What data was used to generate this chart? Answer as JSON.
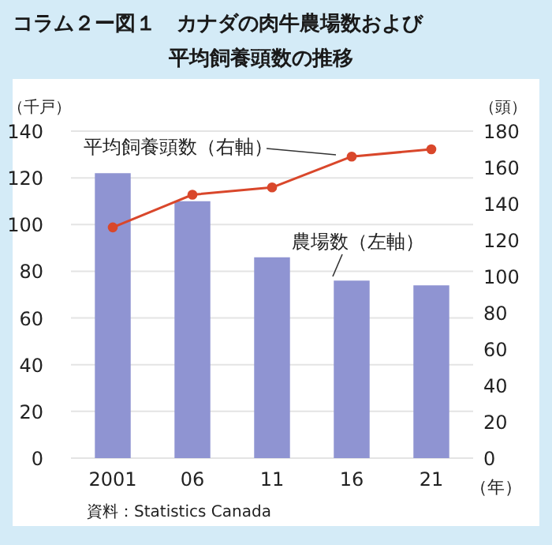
{
  "chart_data": {
    "type": "bar",
    "title": "コラム２ー図１　カナダの肉牛農場数および平均飼養頭数の推移",
    "categories": [
      "2001",
      "06",
      "11",
      "16",
      "21"
    ],
    "series": [
      {
        "name": "農場数（左軸）",
        "color": "#8f94d2",
        "values": [
          122,
          110,
          86,
          76,
          74
        ]
      },
      {
        "name": "平均飼養頭数（右軸）",
        "type": "line",
        "axis": "y2",
        "color": "#d9472b",
        "marker": "circle",
        "values": [
          127,
          145,
          149,
          166,
          170
        ]
      }
    ],
    "xlabel": "（年）",
    "ylabel": "（千戸）",
    "y2label": "（頭）",
    "ylim": [
      0,
      140
    ],
    "yticks": [
      0,
      20,
      40,
      60,
      80,
      100,
      120,
      140
    ],
    "y2lim": [
      0,
      180
    ],
    "y2ticks": [
      0,
      20,
      40,
      60,
      80,
      100,
      120,
      140,
      160,
      180
    ],
    "grid": "y",
    "annotations": [
      "資料：Statistics Canada"
    ]
  }
}
